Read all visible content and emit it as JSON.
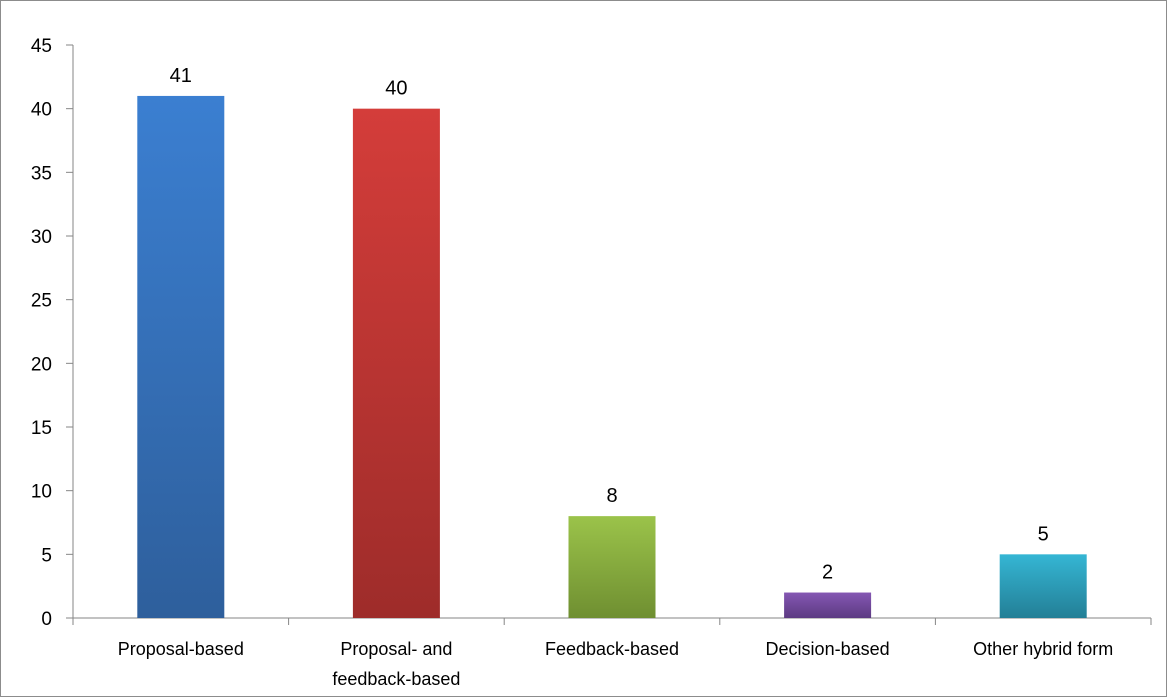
{
  "chart_data": {
    "type": "bar",
    "categories": [
      [
        "Proposal-based"
      ],
      [
        "Proposal- and",
        "feedback-based"
      ],
      [
        "Feedback-based"
      ],
      [
        "Decision-based"
      ],
      [
        "Other hybrid form"
      ]
    ],
    "values": [
      41,
      40,
      8,
      2,
      5
    ],
    "data_labels": [
      "41",
      "40",
      "8",
      "2",
      "5"
    ],
    "bar_colors": [
      [
        "#3b7fd1",
        "#2e5f9c"
      ],
      [
        "#d43d3a",
        "#9e2c2a"
      ],
      [
        "#9bc34a",
        "#6f8f31"
      ],
      [
        "#8557b3",
        "#5c3a82"
      ],
      [
        "#35b6d4",
        "#237f96"
      ]
    ],
    "ylim": [
      0,
      45
    ],
    "yticks": [
      0,
      5,
      10,
      15,
      20,
      25,
      30,
      35,
      40,
      45
    ],
    "title": "",
    "xlabel": "",
    "ylabel": "",
    "grid": false,
    "legend": "none"
  }
}
